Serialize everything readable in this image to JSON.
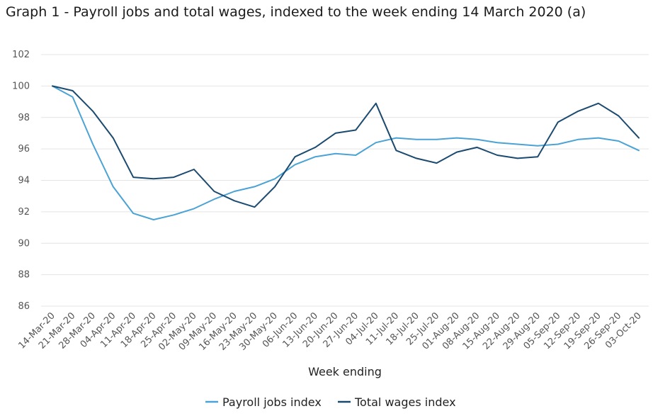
{
  "chart_data": {
    "type": "line",
    "title": "Graph 1 - Payroll jobs and total wages, indexed to the week ending 14 March 2020 (a)",
    "xlabel": "Week ending",
    "ylabel": "",
    "ylim": [
      86,
      102
    ],
    "yticks": [
      86,
      88,
      90,
      92,
      94,
      96,
      98,
      100,
      102
    ],
    "grid": true,
    "legend": "bottom-center",
    "categories": [
      "14-Mar-20",
      "21-Mar-20",
      "28-Mar-20",
      "04-Apr-20",
      "11-Apr-20",
      "18-Apr-20",
      "25-Apr-20",
      "02-May-20",
      "09-May-20",
      "16-May-20",
      "23-May-20",
      "30-May-20",
      "06-Jun-20",
      "13-Jun-20",
      "20-Jun-20",
      "27-Jun-20",
      "04-Jul-20",
      "11-Jul-20",
      "18-Jul-20",
      "25-Jul-20",
      "01-Aug-20",
      "08-Aug-20",
      "15-Aug-20",
      "22-Aug-20",
      "29-Aug-20",
      "05-Sep-20",
      "12-Sep-20",
      "19-Sep-20",
      "26-Sep-20",
      "03-Oct-20"
    ],
    "series": [
      {
        "name": "Payroll jobs index",
        "color": "#4aa3d4",
        "values": [
          100.0,
          99.3,
          96.3,
          93.6,
          91.9,
          91.5,
          91.8,
          92.2,
          92.8,
          93.3,
          93.6,
          94.1,
          95.0,
          95.5,
          95.7,
          95.6,
          96.4,
          96.7,
          96.6,
          96.6,
          96.7,
          96.6,
          96.4,
          96.3,
          96.2,
          96.3,
          96.6,
          96.7,
          96.5,
          95.9
        ]
      },
      {
        "name": "Total wages index",
        "color": "#1b4a70",
        "values": [
          100.0,
          99.7,
          98.4,
          96.7,
          94.2,
          94.1,
          94.2,
          94.7,
          93.3,
          92.7,
          92.3,
          93.6,
          95.5,
          96.1,
          97.0,
          97.2,
          98.9,
          95.9,
          95.4,
          95.1,
          95.8,
          96.1,
          95.6,
          95.4,
          95.5,
          97.7,
          98.4,
          98.9,
          98.1,
          96.7
        ]
      }
    ]
  }
}
